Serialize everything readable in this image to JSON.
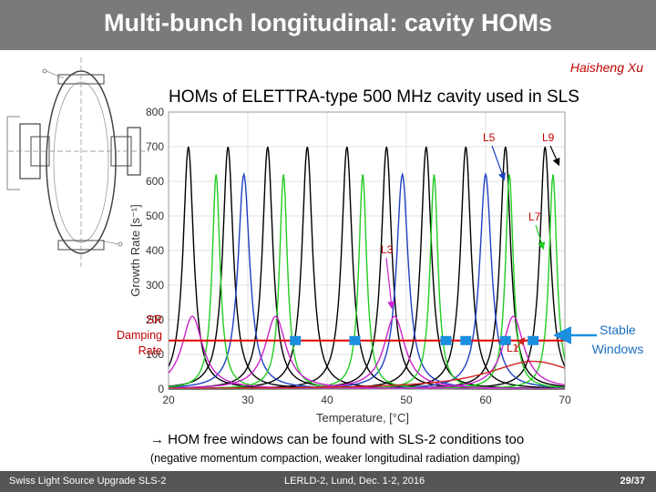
{
  "header": {
    "title": "Multi-bunch longitudinal: cavity HOMs"
  },
  "author": "Haisheng Xu",
  "subtitle": "HOMs of ELETTRA-type 500 MHz cavity used in SLS",
  "notes": {
    "line1": "→ HOM free windows can be found with SLS-2 conditions too",
    "line2": "(negative momentum compaction, weaker longitudinal radiation damping)"
  },
  "annotations": {
    "sr_damping": "SR\nDamping\nRate",
    "stable_windows": "Stable\nWindows",
    "l1": "L1",
    "l3": "L3",
    "l5": "L5",
    "l7": "L7",
    "l9": "L9"
  },
  "footer": {
    "left": "Swiss Light Source Upgrade SLS-2",
    "center": "LERLD-2, Lund, Dec. 1-2, 2016",
    "page": "29/37"
  },
  "colors": {
    "title_bar": "#7a7a7a",
    "sr_line": "#e00000",
    "stable_marker": "#1a8fdf",
    "l1": "#d02020",
    "l3": "#cc22cc",
    "l5": "#2040c0",
    "l7": "#22cc22",
    "l9": "#000000"
  },
  "chart_data": {
    "type": "line",
    "title": "HOMs of ELETTRA-type 500 MHz cavity used in SLS",
    "xlabel": "Temperature, [°C]",
    "ylabel": "Growth Rate [s⁻¹]",
    "xlim": [
      20,
      70
    ],
    "ylim": [
      0,
      800
    ],
    "xticks": [
      20,
      30,
      40,
      50,
      60,
      70
    ],
    "yticks": [
      0,
      100,
      200,
      300,
      400,
      500,
      600,
      700,
      800
    ],
    "sr_damping_rate": 140,
    "stable_windows_x": [
      36,
      43.5,
      55,
      57.5,
      62.5,
      66
    ],
    "series": [
      {
        "name": "L9",
        "color": "#000000",
        "peak": 700,
        "width": 0.8,
        "centers": [
          22.5,
          27.5,
          32.5,
          37.5,
          42.5,
          47.5,
          52.5,
          57.5,
          62.5,
          67.5
        ]
      },
      {
        "name": "L5",
        "color": "#2040c0",
        "peak": 620,
        "width": 0.9,
        "centers": [
          29.5,
          49.5,
          60
        ]
      },
      {
        "name": "L7",
        "color": "#22cc22",
        "peak": 620,
        "width": 0.6,
        "centers": [
          26,
          34.5,
          44.5,
          53.5,
          63,
          68.5
        ]
      },
      {
        "name": "L3",
        "color": "#cc22cc",
        "peak": 210,
        "width": 1.6,
        "centers": [
          23,
          33.5,
          48.5,
          63.5
        ]
      },
      {
        "name": "L1",
        "color": "#d02020",
        "peak": 80,
        "width": 7,
        "centers": [
          66
        ]
      }
    ]
  }
}
